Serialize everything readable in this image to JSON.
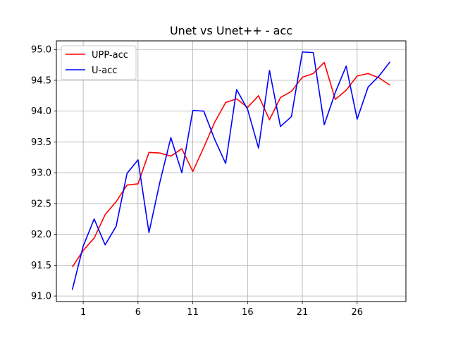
{
  "chart_data": {
    "type": "line",
    "title": "Unet vs Unet++ - acc",
    "xlabel": "",
    "ylabel": "",
    "x": [
      0,
      1,
      2,
      3,
      4,
      5,
      6,
      7,
      8,
      9,
      10,
      11,
      12,
      13,
      14,
      15,
      16,
      17,
      18,
      19,
      20,
      21,
      22,
      23,
      24,
      25,
      26,
      27,
      28,
      29
    ],
    "xlim": [
      -1.45,
      30.45
    ],
    "ylim": [
      90.91,
      95.14
    ],
    "xticks": [
      1,
      6,
      11,
      16,
      21,
      26
    ],
    "xtick_labels": [
      "1",
      "6",
      "11",
      "16",
      "21",
      "26"
    ],
    "yticks": [
      91.0,
      91.5,
      92.0,
      92.5,
      93.0,
      93.5,
      94.0,
      94.5,
      95.0
    ],
    "ytick_labels": [
      "91.0",
      "91.5",
      "92.0",
      "92.5",
      "93.0",
      "93.5",
      "94.0",
      "94.5",
      "95.0"
    ],
    "grid": true,
    "legend_position": "top-left",
    "series": [
      {
        "name": "UPP-acc",
        "color": "#ff0000",
        "values": [
          91.47,
          91.74,
          91.94,
          92.32,
          92.53,
          92.8,
          92.82,
          93.33,
          93.32,
          93.27,
          93.39,
          93.02,
          93.41,
          93.82,
          94.14,
          94.2,
          94.06,
          94.25,
          93.86,
          94.22,
          94.32,
          94.55,
          94.61,
          94.79,
          94.19,
          94.34,
          94.57,
          94.61,
          94.54,
          94.42
        ]
      },
      {
        "name": "U-acc",
        "color": "#0000ff",
        "values": [
          91.1,
          91.81,
          92.25,
          91.83,
          92.13,
          92.99,
          93.21,
          92.03,
          92.85,
          93.57,
          93.0,
          94.01,
          94.0,
          93.54,
          93.15,
          94.35,
          94.03,
          93.4,
          94.66,
          93.75,
          93.91,
          94.96,
          94.95,
          93.78,
          94.3,
          94.73,
          93.87,
          94.39,
          94.57,
          94.8
        ]
      }
    ]
  }
}
